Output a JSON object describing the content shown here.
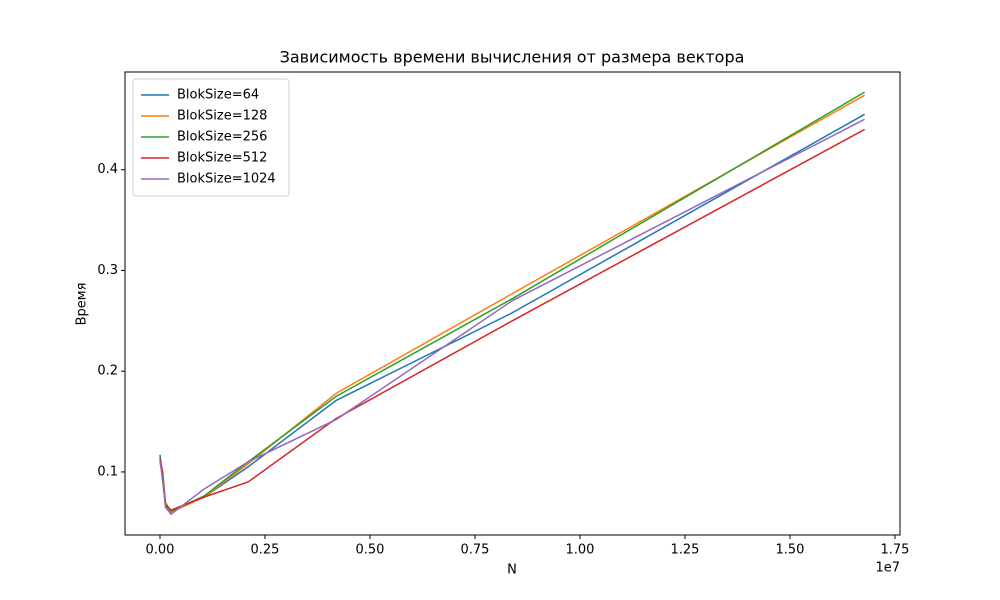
{
  "chart_data": {
    "type": "line",
    "title": "Зависимость времени вычисления от размера вектора",
    "x_label": "N",
    "y_label": "Время",
    "x_offset_label": "1e7",
    "x": [
      1024,
      65536,
      131072,
      262144,
      1048576,
      2097152,
      4194304,
      8388608,
      16777216
    ],
    "series": [
      {
        "name": "BlokSize=64",
        "color": "#1f77b4",
        "values": [
          0.117,
          0.092,
          0.066,
          0.062,
          0.075,
          0.105,
          0.171,
          0.258,
          0.455
        ]
      },
      {
        "name": "BlokSize=128",
        "color": "#ff7f0e",
        "values": [
          0.112,
          0.095,
          0.07,
          0.06,
          0.075,
          0.108,
          0.178,
          0.277,
          0.474
        ]
      },
      {
        "name": "BlokSize=256",
        "color": "#2ca02c",
        "values": [
          0.115,
          0.09,
          0.067,
          0.061,
          0.076,
          0.11,
          0.175,
          0.272,
          0.477
        ]
      },
      {
        "name": "BlokSize=512",
        "color": "#d62728",
        "values": [
          0.113,
          0.1,
          0.068,
          0.062,
          0.075,
          0.09,
          0.153,
          0.25,
          0.44
        ]
      },
      {
        "name": "BlokSize=1024",
        "color": "#9467bd",
        "values": [
          0.11,
          0.094,
          0.065,
          0.058,
          0.083,
          0.11,
          0.152,
          0.27,
          0.45
        ]
      }
    ],
    "xlim": [
      -833000,
      17620000
    ],
    "xticks": [
      {
        "value": 0,
        "label": "0.00"
      },
      {
        "value": 2500000,
        "label": "0.25"
      },
      {
        "value": 5000000,
        "label": "0.50"
      },
      {
        "value": 7500000,
        "label": "0.75"
      },
      {
        "value": 10000000,
        "label": "1.00"
      },
      {
        "value": 12500000,
        "label": "1.25"
      },
      {
        "value": 15000000,
        "label": "1.50"
      },
      {
        "value": 17500000,
        "label": "1.75"
      }
    ],
    "ylim": [
      0.0374,
      0.497
    ],
    "yticks": [
      0.1,
      0.2,
      0.3,
      0.4
    ],
    "legend": "upper left",
    "grid": false
  }
}
